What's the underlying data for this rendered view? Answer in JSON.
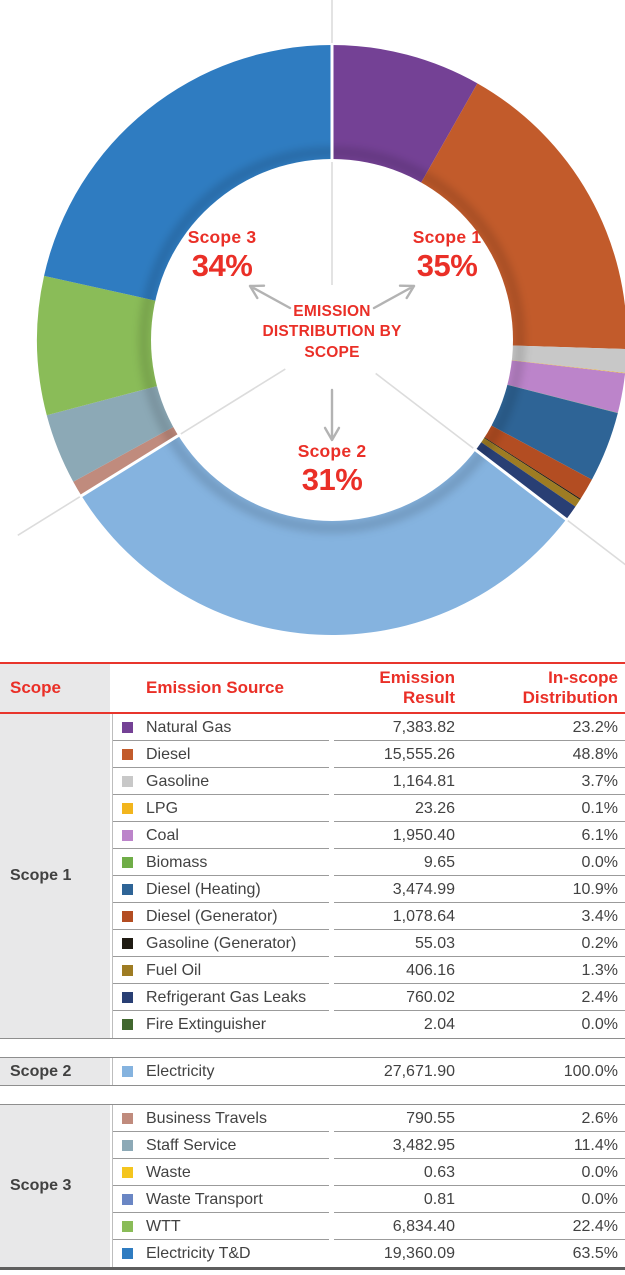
{
  "colors": {
    "accent_red": "#EA2F27",
    "table_line_red": "#E8352C",
    "text_dark": "#424242",
    "scope_cell_bg": "#E8E8E9",
    "divider_gray": "#8E8E8E",
    "radial_line_gray": "#DCDCDC"
  },
  "donut": {
    "center_title": "EMISSION DISTRIBUTION BY SCOPE",
    "callouts": [
      {
        "id": "scope3",
        "label": "Scope 3",
        "pct": "34%"
      },
      {
        "id": "scope1",
        "label": "Scope 1",
        "pct": "35%"
      },
      {
        "id": "scope2",
        "label": "Scope 2",
        "pct": "31%"
      }
    ]
  },
  "chart_data": {
    "type": "pie",
    "subtype": "donut",
    "title": "EMISSION DISTRIBUTION BY SCOPE",
    "direction": "clockwise",
    "start_angle_deg": 0,
    "scope_share_labels": {
      "Scope 1": "35%",
      "Scope 2": "31%",
      "Scope 3": "34%"
    },
    "slices": [
      {
        "scope": "Scope 1",
        "label": "Natural Gas",
        "value": 7383.82,
        "color": "#744195"
      },
      {
        "scope": "Scope 1",
        "label": "Diesel",
        "value": 15555.26,
        "color": "#C25B2B"
      },
      {
        "scope": "Scope 1",
        "label": "Gasoline",
        "value": 1164.81,
        "color": "#C8C8C8"
      },
      {
        "scope": "Scope 1",
        "label": "LPG",
        "value": 23.26,
        "color": "#F2B51D"
      },
      {
        "scope": "Scope 1",
        "label": "Coal",
        "value": 1950.4,
        "color": "#BC84CA"
      },
      {
        "scope": "Scope 1",
        "label": "Biomass",
        "value": 9.65,
        "color": "#6FAD47"
      },
      {
        "scope": "Scope 1",
        "label": "Diesel (Heating)",
        "value": 3474.99,
        "color": "#2E6496"
      },
      {
        "scope": "Scope 1",
        "label": "Diesel (Generator)",
        "value": 1078.64,
        "color": "#B34D22"
      },
      {
        "scope": "Scope 1",
        "label": "Gasoline (Generator)",
        "value": 55.03,
        "color": "#1F1B13"
      },
      {
        "scope": "Scope 1",
        "label": "Fuel Oil",
        "value": 406.16,
        "color": "#9E7C23"
      },
      {
        "scope": "Scope 1",
        "label": "Refrigerant Gas Leaks",
        "value": 760.02,
        "color": "#293F74"
      },
      {
        "scope": "Scope 1",
        "label": "Fire Extinguisher",
        "value": 2.04,
        "color": "#41672F"
      },
      {
        "scope": "Scope 2",
        "label": "Electricity",
        "value": 27671.9,
        "color": "#85B3DF"
      },
      {
        "scope": "Scope 3",
        "label": "Business Travels",
        "value": 790.55,
        "color": "#C08B7D"
      },
      {
        "scope": "Scope 3",
        "label": "Staff Service",
        "value": 3482.95,
        "color": "#8CA9B6"
      },
      {
        "scope": "Scope 3",
        "label": "Waste",
        "value": 0.63,
        "color": "#F4C51E"
      },
      {
        "scope": "Scope 3",
        "label": "Waste Transport",
        "value": 0.81,
        "color": "#6A86C4"
      },
      {
        "scope": "Scope 3",
        "label": "WTT",
        "value": 6834.4,
        "color": "#8ABC58"
      },
      {
        "scope": "Scope 3",
        "label": "Electricity T&D",
        "value": 19360.09,
        "color": "#2F7CC1"
      }
    ]
  },
  "table": {
    "headers": {
      "scope": "Scope",
      "source": "Emission Source",
      "result_line1": "Emission",
      "result_line2": "Result",
      "dist_line1": "In-scope",
      "dist_line2": "Distribution"
    },
    "groups": [
      {
        "scope": "Scope 1",
        "rows": [
          {
            "source": "Natural Gas",
            "result": "7,383.82",
            "share": "23.2%",
            "color": "#744195"
          },
          {
            "source": "Diesel",
            "result": "15,555.26",
            "share": "48.8%",
            "color": "#C25B2B"
          },
          {
            "source": "Gasoline",
            "result": "1,164.81",
            "share": "3.7%",
            "color": "#C8C8C8"
          },
          {
            "source": "LPG",
            "result": "23.26",
            "share": "0.1%",
            "color": "#F2B51D"
          },
          {
            "source": "Coal",
            "result": "1,950.40",
            "share": "6.1%",
            "color": "#BC84CA"
          },
          {
            "source": "Biomass",
            "result": "9.65",
            "share": "0.0%",
            "color": "#6FAD47"
          },
          {
            "source": "Diesel (Heating)",
            "result": "3,474.99",
            "share": "10.9%",
            "color": "#2E6496"
          },
          {
            "source": "Diesel (Generator)",
            "result": "1,078.64",
            "share": "3.4%",
            "color": "#B34D22"
          },
          {
            "source": "Gasoline (Generator)",
            "result": "55.03",
            "share": "0.2%",
            "color": "#1F1B13"
          },
          {
            "source": "Fuel Oil",
            "result": "406.16",
            "share": "1.3%",
            "color": "#9E7C23"
          },
          {
            "source": "Refrigerant Gas Leaks",
            "result": "760.02",
            "share": "2.4%",
            "color": "#293F74"
          },
          {
            "source": "Fire Extinguisher",
            "result": "2.04",
            "share": "0.0%",
            "color": "#41672F"
          }
        ]
      },
      {
        "scope": "Scope 2",
        "rows": [
          {
            "source": "Electricity",
            "result": "27,671.90",
            "share": "100.0%",
            "color": "#85B3DF"
          }
        ]
      },
      {
        "scope": "Scope 3",
        "rows": [
          {
            "source": "Business Travels",
            "result": "790.55",
            "share": "2.6%",
            "color": "#C08B7D"
          },
          {
            "source": "Staff Service",
            "result": "3,482.95",
            "share": "11.4%",
            "color": "#8CA9B6"
          },
          {
            "source": "Waste",
            "result": "0.63",
            "share": "0.0%",
            "color": "#F4C51E"
          },
          {
            "source": "Waste Transport",
            "result": "0.81",
            "share": "0.0%",
            "color": "#6A86C4"
          },
          {
            "source": "WTT",
            "result": "6,834.40",
            "share": "22.4%",
            "color": "#8ABC58"
          },
          {
            "source": "Electricity T&D",
            "result": "19,360.09",
            "share": "63.5%",
            "color": "#2F7CC1"
          }
        ]
      }
    ]
  }
}
